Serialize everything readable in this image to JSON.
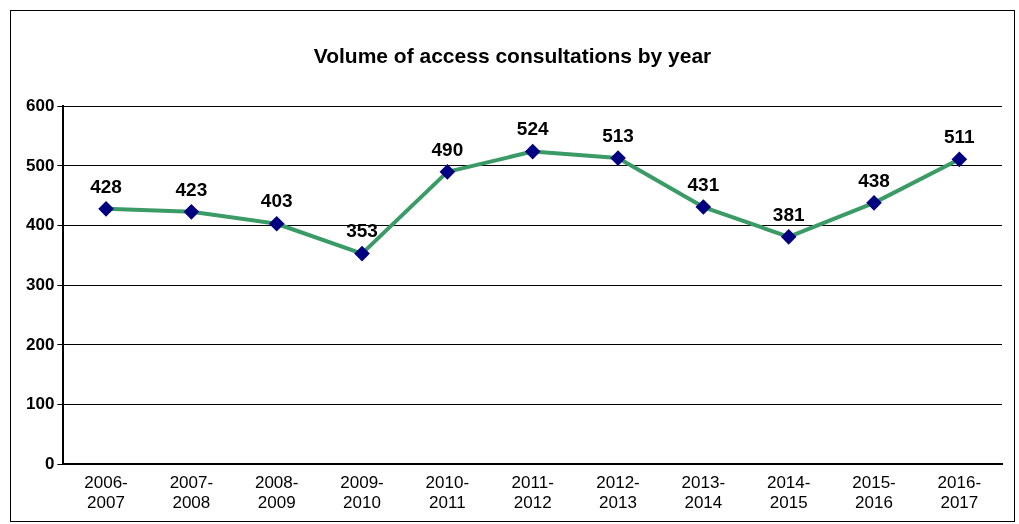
{
  "chart_data": {
    "type": "line",
    "title": "Volume of access consultations by year",
    "categories": [
      "2006-2007",
      "2007-2008",
      "2008-2009",
      "2009-2010",
      "2010-2011",
      "2011-2012",
      "2012-2013",
      "2013-2014",
      "2014-2015",
      "2015-2016",
      "2016-2017"
    ],
    "series": [
      {
        "color": "#3a9b66",
        "values": [
          428,
          423,
          403,
          353,
          490,
          524,
          513,
          431,
          381,
          438,
          511
        ],
        "colors": [
          "#000080",
          "#000080",
          "#000080",
          "#000080",
          "#000080",
          "#000080",
          "#000080",
          "#000080",
          "#000080",
          "#000080",
          "#000080"
        ]
      }
    ],
    "ylim": [
      0,
      600
    ],
    "yticks": [
      0,
      100,
      200,
      300,
      400,
      500,
      600
    ],
    "grid": "y",
    "legend": false,
    "marker": "diamond",
    "line_style": "solid",
    "data_labels": true
  }
}
